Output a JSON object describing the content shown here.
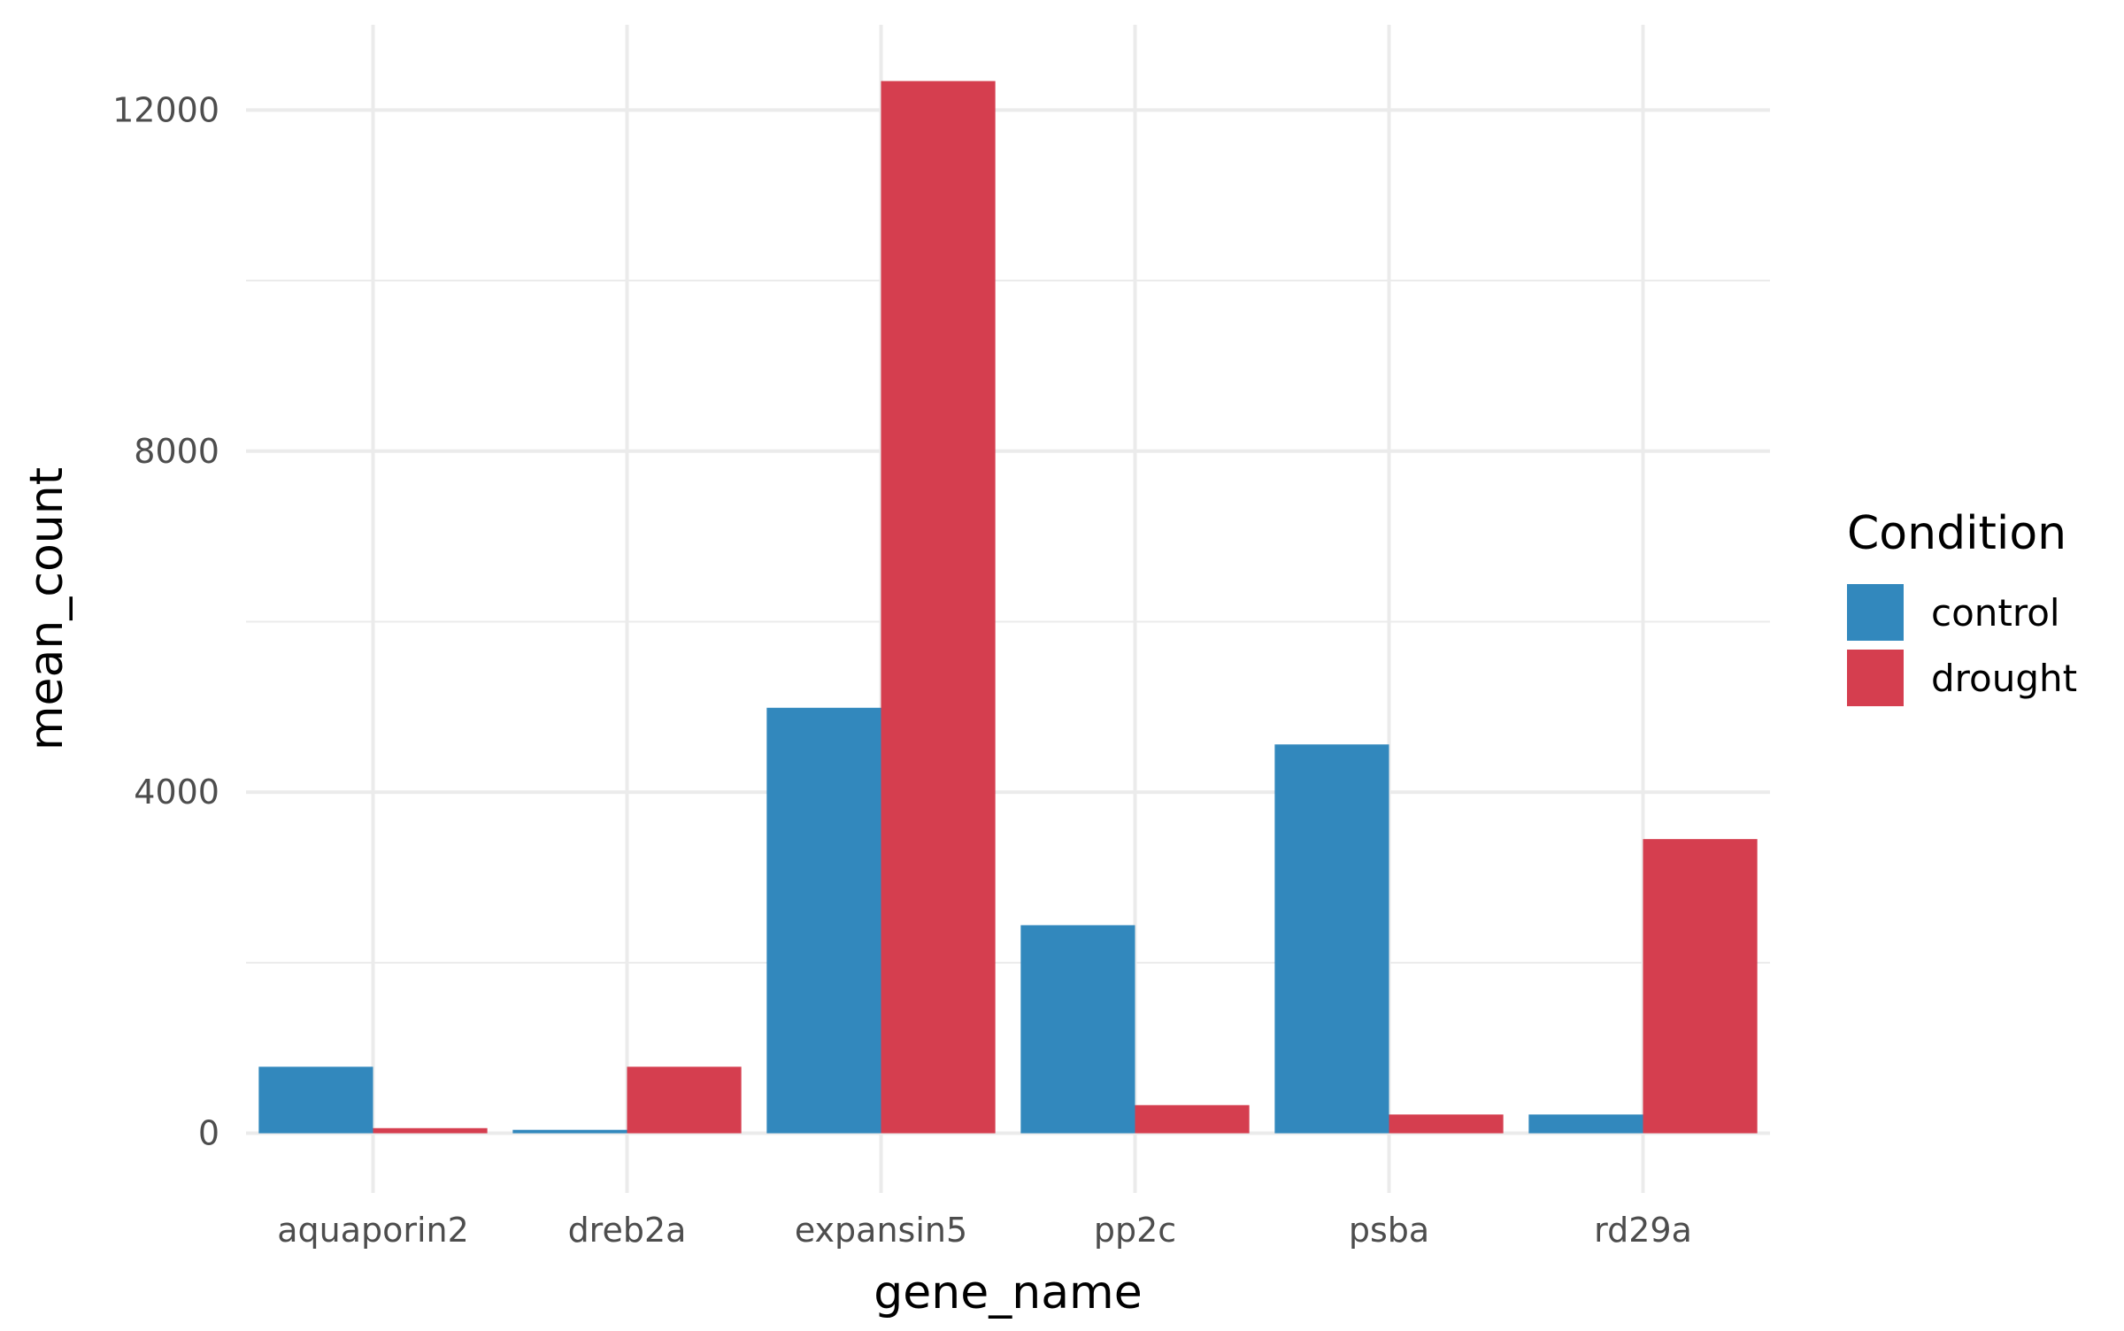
{
  "chart_data": {
    "type": "bar",
    "title": "",
    "xlabel": "gene_name",
    "ylabel": "mean_count",
    "categories": [
      "aquaporin2",
      "dreb2a",
      "expansin5",
      "pp2c",
      "psba",
      "rd29a"
    ],
    "series": [
      {
        "name": "control",
        "color": "#3288BD",
        "values": [
          780,
          40,
          4990,
          2440,
          4560,
          220
        ]
      },
      {
        "name": "drought",
        "color": "#D53E4F",
        "values": [
          60,
          780,
          12340,
          330,
          220,
          3450
        ]
      }
    ],
    "ylim": [
      -700,
      13000
    ],
    "yticks": [
      0,
      4000,
      8000,
      12000
    ],
    "ytick_labels": [
      "0",
      "4000",
      "8000",
      "12000"
    ],
    "minor_yticks": [
      2000,
      6000,
      10000
    ],
    "grid": true,
    "legend": {
      "title": "Condition",
      "position": "right"
    }
  }
}
